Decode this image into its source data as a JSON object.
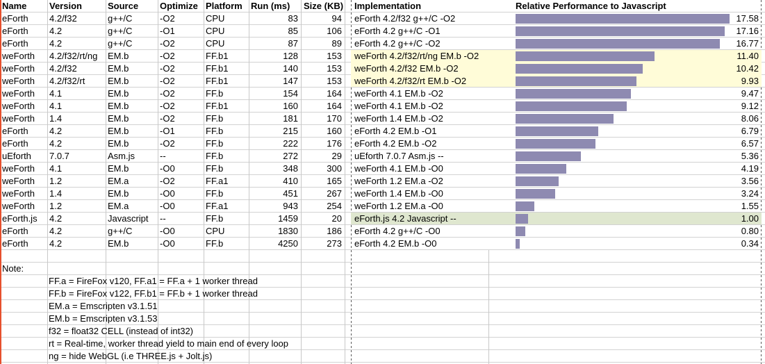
{
  "table": {
    "headers": {
      "name": "Name",
      "version": "Version",
      "source": "Source",
      "optimize": "Optimize",
      "platform": "Platform",
      "run": "Run (ms)",
      "size": "Size (KB)",
      "implementation": "Implementation",
      "chart": "Relative Performance to Javascript"
    },
    "rows": [
      {
        "name": "eForth",
        "version": "4.2/f32",
        "source": "g++/C",
        "optimize": "-O2",
        "platform": "CPU",
        "run": "83",
        "size": "94",
        "implementation": "eForth 4.2/f32 g++/C -O2",
        "rel_perf": "17.58",
        "highlight": "none"
      },
      {
        "name": "eForth",
        "version": "4.2",
        "source": "g++/C",
        "optimize": "-O1",
        "platform": "CPU",
        "run": "85",
        "size": "106",
        "implementation": "eForth 4.2 g++/C -O1",
        "rel_perf": "17.16",
        "highlight": "none"
      },
      {
        "name": "eForth",
        "version": "4.2",
        "source": "g++/C",
        "optimize": "-O2",
        "platform": "CPU",
        "run": "87",
        "size": "89",
        "implementation": "eForth 4.2 g++/C -O2",
        "rel_perf": "16.77",
        "highlight": "none"
      },
      {
        "name": "weForth",
        "version": "4.2/f32/rt/ng",
        "source": "EM.b",
        "optimize": "-O2",
        "platform": "FF.b1",
        "run": "128",
        "size": "153",
        "implementation": "weForth 4.2/f32/rt/ng EM.b -O2",
        "rel_perf": "11.40",
        "highlight": "yellow"
      },
      {
        "name": "weForth",
        "version": "4.2/f32",
        "source": "EM.b",
        "optimize": "-O2",
        "platform": "FF.b1",
        "run": "140",
        "size": "153",
        "implementation": "weForth 4.2/f32 EM.b -O2",
        "rel_perf": "10.42",
        "highlight": "yellow"
      },
      {
        "name": "weForth",
        "version": "4.2/f32/rt",
        "source": "EM.b",
        "optimize": "-O2",
        "platform": "FF.b1",
        "run": "147",
        "size": "153",
        "implementation": "weForth 4.2/f32/rt EM.b -O2",
        "rel_perf": "9.93",
        "highlight": "yellow"
      },
      {
        "name": "weForth",
        "version": "4.1",
        "source": "EM.b",
        "optimize": "-O2",
        "platform": "FF.b",
        "run": "154",
        "size": "164",
        "implementation": "weForth 4.1 EM.b -O2",
        "rel_perf": "9.47",
        "highlight": "none"
      },
      {
        "name": "weForth",
        "version": "4.1",
        "source": "EM.b",
        "optimize": "-O2",
        "platform": "FF.b1",
        "run": "160",
        "size": "164",
        "implementation": "weForth 4.1 EM.b -O2",
        "rel_perf": "9.12",
        "highlight": "none"
      },
      {
        "name": "weForth",
        "version": "1.4",
        "source": "EM.b",
        "optimize": "-O2",
        "platform": "FF.b",
        "run": "181",
        "size": "170",
        "implementation": "weForth 1.4 EM.b -O2",
        "rel_perf": "8.06",
        "highlight": "none"
      },
      {
        "name": "eForth",
        "version": "4.2",
        "source": "EM.b",
        "optimize": "-O1",
        "platform": "FF.b",
        "run": "215",
        "size": "160",
        "implementation": "eForth 4.2 EM.b -O1",
        "rel_perf": "6.79",
        "highlight": "none"
      },
      {
        "name": "eForth",
        "version": "4.2",
        "source": "EM.b",
        "optimize": "-O2",
        "platform": "FF.b",
        "run": "222",
        "size": "176",
        "implementation": "eForth 4.2 EM.b -O2",
        "rel_perf": "6.57",
        "highlight": "none"
      },
      {
        "name": "uEforth",
        "version": "7.0.7",
        "source": "Asm.js",
        "optimize": "--",
        "platform": "FF.b",
        "run": "272",
        "size": "29",
        "implementation": "uEforth 7.0.7 Asm.js --",
        "rel_perf": "5.36",
        "highlight": "none"
      },
      {
        "name": "weForth",
        "version": "4.1",
        "source": "EM.b",
        "optimize": "-O0",
        "platform": "FF.b",
        "run": "348",
        "size": "300",
        "implementation": "weForth 4.1 EM.b -O0",
        "rel_perf": "4.19",
        "highlight": "none"
      },
      {
        "name": "weForth",
        "version": "1.2",
        "source": "EM.a",
        "optimize": "-O2",
        "platform": "FF.a1",
        "run": "410",
        "size": "165",
        "implementation": "weForth 1.2 EM.a -O2",
        "rel_perf": "3.56",
        "highlight": "none"
      },
      {
        "name": "weForth",
        "version": "1.4",
        "source": "EM.b",
        "optimize": "-O0",
        "platform": "FF.b",
        "run": "451",
        "size": "267",
        "implementation": "weForth 1.4 EM.b -O0",
        "rel_perf": "3.24",
        "highlight": "none"
      },
      {
        "name": "weForth",
        "version": "1.2",
        "source": "EM.a",
        "optimize": "-O0",
        "platform": "FF.a1",
        "run": "943",
        "size": "254",
        "implementation": "weForth 1.2 EM.a -O0",
        "rel_perf": "1.55",
        "highlight": "none"
      },
      {
        "name": "eForth.js",
        "version": "4.2",
        "source": "Javascript",
        "optimize": "--",
        "platform": "FF.b",
        "run": "1459",
        "size": "20",
        "implementation": "eForth.js 4.2 Javascript --",
        "rel_perf": "1.00",
        "highlight": "green"
      },
      {
        "name": "eForth",
        "version": "4.2",
        "source": "g++/C",
        "optimize": "-O0",
        "platform": "CPU",
        "run": "1830",
        "size": "186",
        "implementation": "eForth 4.2 g++/C -O0",
        "rel_perf": "0.80",
        "highlight": "none"
      },
      {
        "name": "eForth",
        "version": "4.2",
        "source": "EM.b",
        "optimize": "-O0",
        "platform": "FF.b",
        "run": "4250",
        "size": "273",
        "implementation": "eForth 4.2 EM.b -O0",
        "rel_perf": "0.34",
        "highlight": "none"
      }
    ]
  },
  "chart_data": {
    "type": "bar",
    "orientation": "horizontal",
    "title": "Relative Performance to Javascript",
    "categories": [
      "eForth 4.2/f32 g++/C -O2",
      "eForth 4.2 g++/C -O1",
      "eForth 4.2 g++/C -O2",
      "weForth 4.2/f32/rt/ng EM.b -O2",
      "weForth 4.2/f32 EM.b -O2",
      "weForth 4.2/f32/rt EM.b -O2",
      "weForth 4.1 EM.b -O2",
      "weForth 4.1 EM.b -O2",
      "weForth 1.4 EM.b -O2",
      "eForth 4.2 EM.b -O1",
      "eForth 4.2 EM.b -O2",
      "uEforth 7.0.7 Asm.js --",
      "weForth 4.1 EM.b -O0",
      "weForth 1.2 EM.a -O2",
      "weForth 1.4 EM.b -O0",
      "weForth 1.2 EM.a -O0",
      "eForth.js 4.2 Javascript --",
      "eForth 4.2 g++/C -O0",
      "eForth 4.2 EM.b -O0"
    ],
    "values": [
      17.58,
      17.16,
      16.77,
      11.4,
      10.42,
      9.93,
      9.47,
      9.12,
      8.06,
      6.79,
      6.57,
      5.36,
      4.19,
      3.56,
      3.24,
      1.55,
      1.0,
      0.8,
      0.34
    ],
    "value_axis_range": [
      0,
      17.58
    ],
    "baseline_category": "eForth.js 4.2 Javascript --",
    "baseline_value": 1.0,
    "grid": false,
    "legend": "none"
  },
  "notes": {
    "label": "Note:",
    "lines": [
      "FF.a = FireFox v120, FF.a1 = FF.a + 1 worker thread",
      "FF.b = FireFox v122, FF.b1 = FF.b + 1 worker thread",
      "EM.a = Emscripten v3.1.51",
      "EM.b = Emscripten v3.1.53",
      "f32 = float32 CELL (instead of int32)",
      "rt = Real-time, worker thread yield to main end of every loop",
      "ng = hide WebGL (i.e THREE.js + Jolt.js)"
    ]
  },
  "colors": {
    "bar": "#8e8ab1",
    "highlight_yellow": "#fffcd8",
    "highlight_green": "#dfe7cf",
    "gridline": "#c8c8c8",
    "page_break_dash": "#5a5a5a",
    "left_edge_line": "#e6502d",
    "text": "#000000"
  }
}
